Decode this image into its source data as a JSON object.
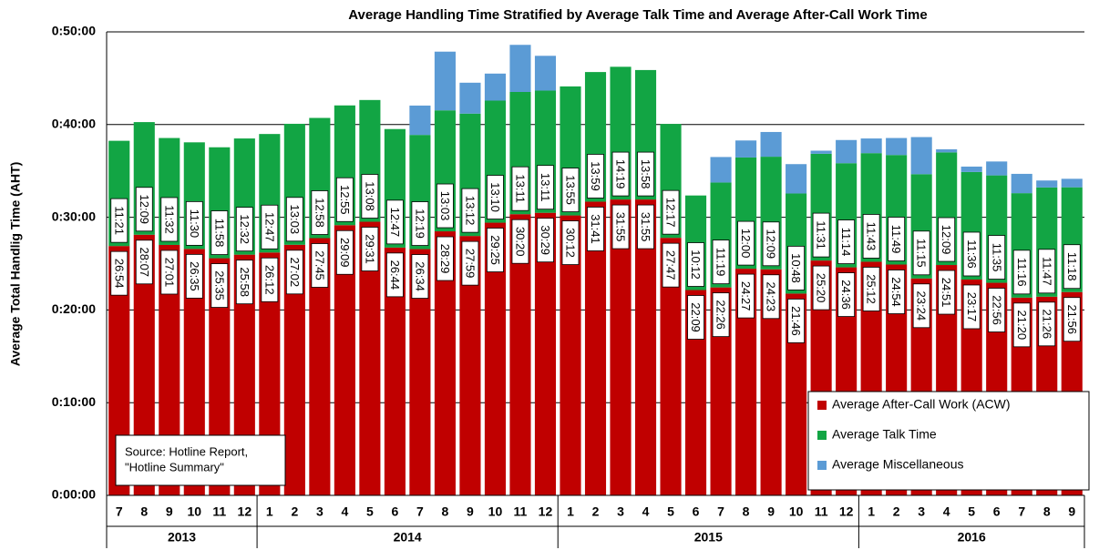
{
  "chart_data": {
    "type": "stacked_bar",
    "title": "Average Handling Time Stratified by Average Talk Time and Average After-Call Work Time",
    "y_label": "Average Total Handlig Time (AHT)",
    "annotation": [
      "Source: Hotline Report,",
      "\"Hotline Summary\""
    ],
    "categories": [
      "7",
      "8",
      "9",
      "10",
      "11",
      "12",
      "1",
      "2",
      "3",
      "4",
      "5",
      "6",
      "7",
      "8",
      "9",
      "10",
      "11",
      "12",
      "1",
      "2",
      "3",
      "4",
      "5",
      "6",
      "7",
      "8",
      "9",
      "10",
      "11",
      "12",
      "1",
      "2",
      "3",
      "4",
      "5",
      "6",
      "7",
      "8",
      "9"
    ],
    "groups": [
      "2013",
      "2014",
      "2015",
      "2016"
    ],
    "ylim": [
      0,
      3000
    ],
    "yticks": [
      {
        "value": 0,
        "label": "0:00:00"
      },
      {
        "value": 600,
        "label": "0:10:00"
      },
      {
        "value": 1200,
        "label": "0:20:00"
      },
      {
        "value": 1800,
        "label": "0:30:00"
      },
      {
        "value": 2400,
        "label": "0:40:00"
      },
      {
        "value": 3000,
        "label": "0:50:00"
      }
    ],
    "grid": true,
    "legend": "bottom-right",
    "series": [
      {
        "name": "Average After-Call Work (ACW)",
        "color": "#c00000",
        "values": [
          1614,
          1687,
          1621,
          1595,
          1535,
          1558,
          1572,
          1622,
          1665,
          1749,
          1771,
          1604,
          1594,
          1709,
          1679,
          1765,
          1820,
          1829,
          1812,
          1901,
          1915,
          1915,
          1667,
          1329,
          1346,
          1467,
          1463,
          1306,
          1520,
          1476,
          1512,
          1494,
          1404,
          1491,
          1397,
          1376,
          1280,
          1286,
          1316
        ],
        "value_labels": [
          "26:54",
          "28:07",
          "27:01",
          "26:35",
          "25:35",
          "25:58",
          "26:12",
          "27:02",
          "27:45",
          "29:09",
          "29:31",
          "26:44",
          "26:34",
          "28:29",
          "27:59",
          "29:25",
          "30:20",
          "30:29",
          "30:12",
          "31:41",
          "31:55",
          "31:55",
          "27:47",
          "22:09",
          "22:26",
          "24:27",
          "24:23",
          "21:46",
          "25:20",
          "24:36",
          "25:12",
          "24:54",
          "23:24",
          "24:51",
          "23:17",
          "22:56",
          "21:20",
          "21:26",
          "21:56"
        ]
      },
      {
        "name": "Average Talk Time",
        "color": "#12a544",
        "values": [
          681,
          729,
          692,
          690,
          718,
          752,
          767,
          783,
          778,
          775,
          788,
          767,
          739,
          783,
          792,
          790,
          791,
          791,
          835,
          839,
          859,
          838,
          737,
          612,
          679,
          720,
          729,
          648,
          691,
          674,
          703,
          709,
          675,
          729,
          696,
          695,
          676,
          707,
          678
        ],
        "value_labels": [
          "11:21",
          "12:09",
          "11:32",
          "11:30",
          "11:58",
          "12:32",
          "12:47",
          "13:03",
          "12:58",
          "12:55",
          "13:08",
          "12:47",
          "12:19",
          "13:03",
          "13:12",
          "13:10",
          "13:11",
          "13:11",
          "13:55",
          "13:59",
          "14:19",
          "13:58",
          "12:17",
          "10:12",
          "11:19",
          "12:00",
          "12:09",
          "10:48",
          "11:31",
          "11:14",
          "11:43",
          "11:49",
          "11:15",
          "12:09",
          "11:36",
          "11:35",
          "11:16",
          "11:47",
          "11:18"
        ]
      },
      {
        "name": "Average Miscellaneous",
        "color": "#5b9bd5",
        "values": [
          0,
          0,
          0,
          0,
          0,
          0,
          0,
          0,
          0,
          0,
          0,
          0,
          190,
          380,
          200,
          175,
          305,
          225,
          0,
          0,
          0,
          0,
          0,
          0,
          165,
          110,
          160,
          190,
          20,
          150,
          95,
          110,
          240,
          20,
          35,
          90,
          125,
          45,
          55
        ]
      }
    ]
  }
}
